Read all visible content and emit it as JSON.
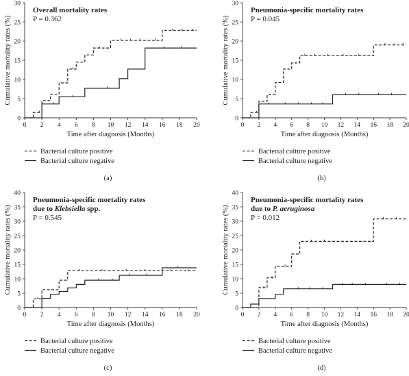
{
  "figure": {
    "panels": [
      {
        "id": "a",
        "title_lines": [
          {
            "text": "Overall mortality rates"
          }
        ],
        "p_value": "P = 0.362",
        "caption": "(a)",
        "xlabel": "Time after diagnosis (Months)",
        "ylabel": "Cumulative mortality rates (%)",
        "xticks": [
          "0",
          "2",
          "4",
          "6",
          "8",
          "10",
          "12",
          "14",
          "16",
          "18",
          "20"
        ],
        "yticks": [
          "0",
          "5",
          "10",
          "15",
          "20",
          "25",
          "30"
        ],
        "legend": [
          "Bacterial culture positive",
          "Bacterial culture negative"
        ]
      },
      {
        "id": "b",
        "title_lines": [
          {
            "text": "Pneumonia-specific mortality rates"
          }
        ],
        "p_value": "P = 0.045",
        "caption": "(b)",
        "xlabel": "Time after diagnosis (Months)",
        "ylabel": "Cumulative mortality rates (%)",
        "xticks": [
          "0",
          "2",
          "4",
          "6",
          "8",
          "10",
          "12",
          "14",
          "16",
          "18",
          "20"
        ],
        "yticks": [
          "0",
          "5",
          "10",
          "15",
          "20",
          "25",
          "30"
        ],
        "legend": [
          "Bacterial culture positive",
          "Bacterial culture negative"
        ]
      },
      {
        "id": "c",
        "title_lines": [
          {
            "text": "Pneumonia-specific mortality rates"
          },
          {
            "pre": "due to ",
            "ital": "Klebsiella",
            "post": " spp."
          }
        ],
        "p_value": "P = 0.545",
        "caption": "(c)",
        "xlabel": "Time after diagnosis (Months)",
        "ylabel": "Cumulative mortality rates (%)",
        "xticks": [
          "0",
          "2",
          "4",
          "6",
          "8",
          "10",
          "12",
          "14",
          "16",
          "18",
          "20"
        ],
        "yticks": [
          "0",
          "5",
          "10",
          "15",
          "20",
          "25",
          "30",
          "35",
          "40"
        ],
        "legend": [
          "Bacterial culture positive",
          "Bacterial culture negative"
        ]
      },
      {
        "id": "d",
        "title_lines": [
          {
            "text": "Pneumonia-specific mortality rates"
          },
          {
            "pre": "due to ",
            "ital": "P. aeruginosa",
            "post": ""
          }
        ],
        "p_value": "P = 0.012",
        "caption": "(d)",
        "xlabel": "Time after diagnosis (Months)",
        "ylabel": "Cumulative mortality rates (%)",
        "xticks": [
          "0",
          "2",
          "4",
          "6",
          "8",
          "10",
          "12",
          "14",
          "16",
          "18",
          "20"
        ],
        "yticks": [
          "0",
          "5",
          "10",
          "15",
          "20",
          "25",
          "30",
          "35",
          "40"
        ],
        "legend": [
          "Bacterial culture positive",
          "Bacterial culture negative"
        ]
      }
    ]
  },
  "chart_data": [
    {
      "type": "line",
      "subtype": "step",
      "title": "Overall mortality rates",
      "annotation": "P = 0.362",
      "xlabel": "Time after diagnosis (Months)",
      "ylabel": "Cumulative mortality rates (%)",
      "xlim": [
        0,
        20
      ],
      "ylim": [
        0,
        30
      ],
      "grid": false,
      "legend_position": "below",
      "series": [
        {
          "name": "Bacterial culture positive",
          "style": "dashed",
          "x": [
            0,
            1,
            2,
            3,
            4,
            5,
            6,
            7,
            8,
            10,
            16,
            20
          ],
          "y": [
            0,
            1.4,
            4.5,
            6.1,
            9.1,
            12.7,
            14.5,
            16.4,
            18.2,
            20.2,
            22.8,
            22.8
          ],
          "censor_x": [
            1.7,
            5.6,
            8.7,
            11.2,
            12.3,
            13.4,
            15.2,
            17.2,
            18.2,
            19.5
          ]
        },
        {
          "name": "Bacterial culture negative",
          "style": "solid",
          "x": [
            0,
            2,
            4,
            7,
            11,
            12,
            14,
            20
          ],
          "y": [
            0,
            3.6,
            5.5,
            7.7,
            10.2,
            12.7,
            18.2,
            18.2
          ],
          "censor_x": [
            3.4,
            5.6,
            9.6,
            16.2,
            18.2
          ]
        }
      ]
    },
    {
      "type": "line",
      "subtype": "step",
      "title": "Pneumonia-specific mortality rates",
      "annotation": "P = 0.045",
      "xlabel": "Time after diagnosis (Months)",
      "ylabel": "Cumulative mortality rates (%)",
      "xlim": [
        0,
        20
      ],
      "ylim": [
        0,
        30
      ],
      "grid": false,
      "legend_position": "below",
      "series": [
        {
          "name": "Bacterial culture positive",
          "style": "dashed",
          "x": [
            0,
            1,
            2,
            3,
            4,
            5,
            6,
            7,
            16,
            20
          ],
          "y": [
            0,
            1.4,
            4.3,
            6.0,
            9.2,
            12.7,
            14.3,
            16.2,
            19.0,
            19.0
          ],
          "censor_x": [
            1.7,
            7.6,
            8.8,
            10.4,
            12.3,
            14.2,
            17.4,
            18.6,
            19.6
          ]
        },
        {
          "name": "Bacterial culture negative",
          "style": "solid",
          "x": [
            0,
            2,
            11,
            20
          ],
          "y": [
            0,
            3.6,
            6.0,
            6.0
          ],
          "censor_x": [
            3.2,
            5.2,
            6.8,
            8.4,
            9.8,
            12.6,
            14.2,
            16.6,
            18.2
          ]
        }
      ]
    },
    {
      "type": "line",
      "subtype": "step",
      "title": "Pneumonia-specific mortality rates due to Klebsiella spp.",
      "annotation": "P = 0.545",
      "xlabel": "Time after diagnosis (Months)",
      "ylabel": "Cumulative mortality rates (%)",
      "xlim": [
        0,
        20
      ],
      "ylim": [
        0,
        40
      ],
      "grid": false,
      "legend_position": "below",
      "series": [
        {
          "name": "Bacterial culture positive",
          "style": "dashed",
          "x": [
            0,
            1,
            2,
            4,
            5,
            20
          ],
          "y": [
            0,
            3.0,
            6.2,
            9.5,
            12.8,
            12.8
          ],
          "censor_x": [
            1.5,
            6.4,
            9.0,
            11.8,
            14.0,
            17.0,
            19.0
          ]
        },
        {
          "name": "Bacterial culture negative",
          "style": "solid",
          "x": [
            0,
            2,
            3,
            4,
            5,
            6,
            7,
            8,
            11,
            16,
            20
          ],
          "y": [
            0,
            3.2,
            4.6,
            5.6,
            6.8,
            8.0,
            9.5,
            9.5,
            11.2,
            13.8,
            13.8
          ],
          "censor_x": [
            8.6,
            10.2,
            12.2,
            14.2,
            17.8
          ]
        }
      ]
    },
    {
      "type": "line",
      "subtype": "step",
      "title": "Pneumonia-specific mortality rates due to P. aeruginosa",
      "annotation": "P = 0.012",
      "xlabel": "Time after diagnosis (Months)",
      "ylabel": "Cumulative mortality rates (%)",
      "xlim": [
        0,
        20
      ],
      "ylim": [
        0,
        40
      ],
      "grid": false,
      "legend_position": "below",
      "series": [
        {
          "name": "Bacterial culture positive",
          "style": "dashed",
          "x": [
            0,
            2,
            3,
            4,
            6,
            7,
            16,
            20
          ],
          "y": [
            0,
            6.9,
            10.3,
            14.3,
            18.6,
            23.0,
            30.8,
            30.8
          ],
          "censor_x": [
            2.6,
            3.6,
            5.2,
            8.4,
            10.0,
            17.2,
            18.8
          ]
        },
        {
          "name": "Bacterial culture negative",
          "style": "solid",
          "x": [
            0,
            1,
            2,
            4,
            5,
            11,
            20
          ],
          "y": [
            0,
            1.2,
            3.1,
            4.6,
            6.5,
            8.0,
            8.0
          ],
          "censor_x": [
            6.8,
            8.2,
            9.8,
            12.2,
            13.4,
            15.0,
            17.6,
            19.2
          ]
        }
      ]
    }
  ]
}
